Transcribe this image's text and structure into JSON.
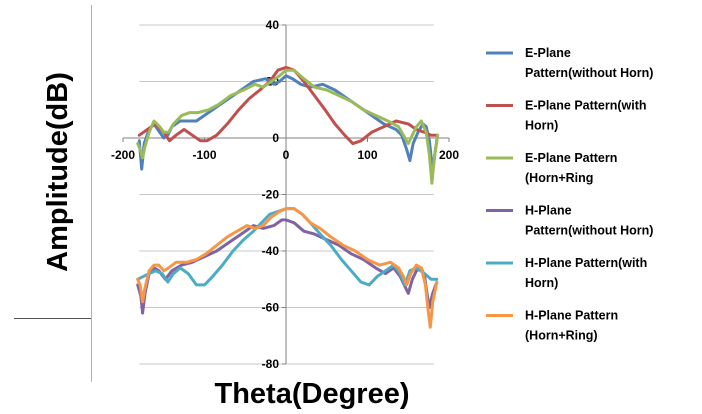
{
  "chart_data": {
    "type": "line",
    "title": "",
    "xlabel": "Theta(Degree)",
    "ylabel": "Amplitude(dB)",
    "xlim": [
      -200,
      200
    ],
    "ylim": [
      -80,
      40
    ],
    "xticks": [
      -200,
      -100,
      0,
      100,
      200
    ],
    "yticks": [
      40,
      20,
      0,
      -20,
      -40,
      -60,
      -80
    ],
    "grid": "horizontal",
    "legend_position": "right",
    "series": [
      {
        "name": "E-Plane Pattern(without Horn)",
        "legend_lines": [
          "E-Plane",
          "Pattern(without Horn)"
        ],
        "color": "#4F81BD",
        "points": [
          [
            -180,
            -1
          ],
          [
            -177,
            -11
          ],
          [
            -174,
            -2
          ],
          [
            -168,
            3
          ],
          [
            -162,
            5
          ],
          [
            -155,
            2
          ],
          [
            -150,
            0
          ],
          [
            -145,
            1
          ],
          [
            -140,
            4
          ],
          [
            -130,
            6
          ],
          [
            -120,
            6
          ],
          [
            -110,
            6
          ],
          [
            -100,
            8
          ],
          [
            -85,
            11
          ],
          [
            -70,
            14
          ],
          [
            -55,
            17
          ],
          [
            -40,
            20
          ],
          [
            -25,
            21
          ],
          [
            -15,
            19
          ],
          [
            -8,
            20
          ],
          [
            0,
            22
          ],
          [
            8,
            21
          ],
          [
            18,
            19
          ],
          [
            30,
            18
          ],
          [
            45,
            19
          ],
          [
            60,
            17
          ],
          [
            75,
            14
          ],
          [
            90,
            11
          ],
          [
            105,
            8
          ],
          [
            120,
            5
          ],
          [
            135,
            3
          ],
          [
            142,
            1
          ],
          [
            148,
            -4
          ],
          [
            152,
            -8
          ],
          [
            156,
            -2
          ],
          [
            162,
            2
          ],
          [
            168,
            5
          ],
          [
            172,
            4
          ],
          [
            176,
            -1
          ],
          [
            180,
            -12
          ],
          [
            183,
            -5
          ],
          [
            186,
            1
          ]
        ]
      },
      {
        "name": "E-Plane Pattern(with Horn)",
        "legend_lines": [
          "E-Plane Pattern(with",
          "Horn)"
        ],
        "color": "#C0504D",
        "points": [
          [
            -180,
            1
          ],
          [
            -170,
            3
          ],
          [
            -160,
            5
          ],
          [
            -150,
            2
          ],
          [
            -143,
            -1
          ],
          [
            -135,
            1
          ],
          [
            -125,
            3
          ],
          [
            -115,
            1
          ],
          [
            -105,
            -1
          ],
          [
            -97,
            -1
          ],
          [
            -85,
            1
          ],
          [
            -72,
            5
          ],
          [
            -58,
            10
          ],
          [
            -45,
            14
          ],
          [
            -32,
            17
          ],
          [
            -20,
            20
          ],
          [
            -10,
            24
          ],
          [
            0,
            25
          ],
          [
            10,
            24
          ],
          [
            22,
            20
          ],
          [
            35,
            15
          ],
          [
            48,
            10
          ],
          [
            60,
            5
          ],
          [
            72,
            1
          ],
          [
            82,
            -2
          ],
          [
            92,
            -1
          ],
          [
            105,
            2
          ],
          [
            120,
            4
          ],
          [
            135,
            6
          ],
          [
            150,
            5
          ],
          [
            160,
            3
          ],
          [
            170,
            2
          ],
          [
            178,
            1
          ],
          [
            186,
            1
          ]
        ]
      },
      {
        "name": "E-Plane Pattern (Horn+Ring",
        "legend_lines": [
          "E-Plane Pattern",
          "(Horn+Ring"
        ],
        "color": "#9BBB59",
        "points": [
          [
            -182,
            -2
          ],
          [
            -179,
            -4
          ],
          [
            -176,
            -7
          ],
          [
            -173,
            -3
          ],
          [
            -168,
            2
          ],
          [
            -162,
            6
          ],
          [
            -155,
            4
          ],
          [
            -150,
            2
          ],
          [
            -144,
            2
          ],
          [
            -138,
            5
          ],
          [
            -128,
            8
          ],
          [
            -118,
            9
          ],
          [
            -108,
            9
          ],
          [
            -95,
            10
          ],
          [
            -82,
            12
          ],
          [
            -68,
            15
          ],
          [
            -52,
            17
          ],
          [
            -38,
            19
          ],
          [
            -28,
            18
          ],
          [
            -18,
            20
          ],
          [
            -8,
            22
          ],
          [
            0,
            24
          ],
          [
            10,
            24
          ],
          [
            22,
            21
          ],
          [
            35,
            18
          ],
          [
            50,
            17
          ],
          [
            65,
            15
          ],
          [
            80,
            13
          ],
          [
            95,
            10
          ],
          [
            110,
            8
          ],
          [
            125,
            6
          ],
          [
            138,
            4
          ],
          [
            146,
            0
          ],
          [
            150,
            -2
          ],
          [
            155,
            1
          ],
          [
            160,
            4
          ],
          [
            166,
            6
          ],
          [
            172,
            2
          ],
          [
            176,
            -6
          ],
          [
            179,
            -16
          ],
          [
            182,
            -7
          ],
          [
            186,
            1
          ]
        ]
      },
      {
        "name": "H-Plane Pattern(without Horn)",
        "legend_lines": [
          "H-Plane",
          "Pattern(without Horn)"
        ],
        "color": "#8064A2",
        "points": [
          [
            -182,
            -52
          ],
          [
            -178,
            -56
          ],
          [
            -176,
            -62
          ],
          [
            -173,
            -55
          ],
          [
            -168,
            -48
          ],
          [
            -162,
            -46
          ],
          [
            -156,
            -47
          ],
          [
            -148,
            -50
          ],
          [
            -140,
            -47
          ],
          [
            -128,
            -45
          ],
          [
            -115,
            -44
          ],
          [
            -100,
            -42
          ],
          [
            -85,
            -40
          ],
          [
            -70,
            -37
          ],
          [
            -55,
            -34
          ],
          [
            -40,
            -31
          ],
          [
            -28,
            -32
          ],
          [
            -15,
            -31
          ],
          [
            -5,
            -29
          ],
          [
            0,
            -29
          ],
          [
            10,
            -30
          ],
          [
            22,
            -33
          ],
          [
            35,
            -34
          ],
          [
            50,
            -36
          ],
          [
            65,
            -38
          ],
          [
            80,
            -41
          ],
          [
            95,
            -43
          ],
          [
            110,
            -46
          ],
          [
            122,
            -48
          ],
          [
            132,
            -46
          ],
          [
            140,
            -49
          ],
          [
            145,
            -52
          ],
          [
            150,
            -55
          ],
          [
            155,
            -50
          ],
          [
            160,
            -47
          ],
          [
            166,
            -46
          ],
          [
            170,
            -49
          ],
          [
            173,
            -55
          ],
          [
            176,
            -60
          ],
          [
            180,
            -55
          ],
          [
            185,
            -51
          ]
        ]
      },
      {
        "name": "H-Plane Pattern(with Horn)",
        "legend_lines": [
          "H-Plane Pattern(with",
          "Horn)"
        ],
        "color": "#4BACC6",
        "points": [
          [
            -182,
            -50
          ],
          [
            -175,
            -49
          ],
          [
            -168,
            -48
          ],
          [
            -160,
            -47
          ],
          [
            -152,
            -48
          ],
          [
            -145,
            -51
          ],
          [
            -138,
            -48
          ],
          [
            -130,
            -46
          ],
          [
            -120,
            -48
          ],
          [
            -110,
            -52
          ],
          [
            -100,
            -52
          ],
          [
            -90,
            -49
          ],
          [
            -78,
            -45
          ],
          [
            -65,
            -40
          ],
          [
            -52,
            -36
          ],
          [
            -40,
            -33
          ],
          [
            -30,
            -30
          ],
          [
            -20,
            -27
          ],
          [
            -10,
            -26
          ],
          [
            0,
            -25
          ],
          [
            10,
            -25
          ],
          [
            20,
            -27
          ],
          [
            30,
            -30
          ],
          [
            42,
            -34
          ],
          [
            55,
            -38
          ],
          [
            68,
            -43
          ],
          [
            80,
            -47
          ],
          [
            92,
            -51
          ],
          [
            102,
            -52
          ],
          [
            112,
            -49
          ],
          [
            122,
            -47
          ],
          [
            132,
            -45
          ],
          [
            140,
            -48
          ],
          [
            146,
            -52
          ],
          [
            152,
            -47
          ],
          [
            160,
            -46
          ],
          [
            170,
            -48
          ],
          [
            178,
            -50
          ],
          [
            185,
            -50
          ]
        ]
      },
      {
        "name": "H-Plane Pattern (Horn+Ring)",
        "legend_lines": [
          "H-Plane Pattern",
          "(Horn+Ring)"
        ],
        "color": "#F79646",
        "points": [
          [
            -182,
            -50
          ],
          [
            -179,
            -52
          ],
          [
            -176,
            -58
          ],
          [
            -173,
            -53
          ],
          [
            -168,
            -47
          ],
          [
            -162,
            -45
          ],
          [
            -156,
            -45
          ],
          [
            -150,
            -47
          ],
          [
            -144,
            -46
          ],
          [
            -135,
            -44
          ],
          [
            -122,
            -44
          ],
          [
            -110,
            -43
          ],
          [
            -98,
            -41
          ],
          [
            -85,
            -38
          ],
          [
            -72,
            -35
          ],
          [
            -60,
            -33
          ],
          [
            -48,
            -31
          ],
          [
            -38,
            -32
          ],
          [
            -28,
            -31
          ],
          [
            -18,
            -28
          ],
          [
            -8,
            -26
          ],
          [
            0,
            -25
          ],
          [
            10,
            -25
          ],
          [
            20,
            -27
          ],
          [
            30,
            -30
          ],
          [
            42,
            -32
          ],
          [
            55,
            -35
          ],
          [
            70,
            -38
          ],
          [
            85,
            -40
          ],
          [
            100,
            -43
          ],
          [
            115,
            -45
          ],
          [
            128,
            -44
          ],
          [
            138,
            -46
          ],
          [
            144,
            -49
          ],
          [
            148,
            -52
          ],
          [
            153,
            -48
          ],
          [
            160,
            -45
          ],
          [
            166,
            -46
          ],
          [
            171,
            -52
          ],
          [
            174,
            -60
          ],
          [
            177,
            -67
          ],
          [
            180,
            -58
          ],
          [
            185,
            -51
          ]
        ]
      }
    ]
  }
}
